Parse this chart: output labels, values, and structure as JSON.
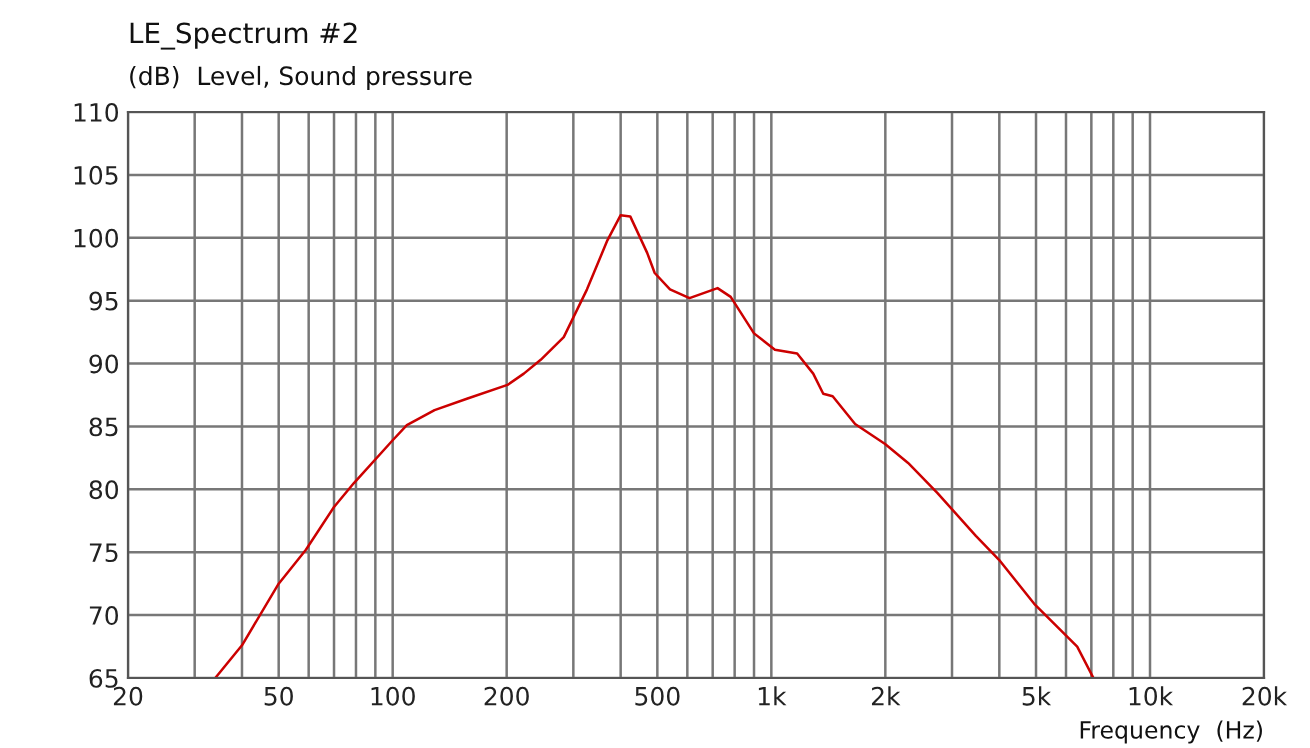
{
  "chart_data": {
    "type": "line",
    "title": "LE_Spectrum #2",
    "ylabel": "(dB)  Level, Sound pressure",
    "xlabel": "Frequency  (Hz)",
    "log": "x",
    "x": [
      34,
      40,
      50,
      59,
      70,
      79,
      100,
      109,
      129,
      157,
      201,
      222,
      246,
      283,
      326,
      369,
      400,
      424,
      470,
      492,
      540,
      608,
      721,
      781,
      900,
      1022,
      1170,
      1290,
      1371,
      1452,
      1664,
      1997,
      2297,
      2747,
      3468,
      3993,
      4945,
      6423,
      7089
    ],
    "series": [
      {
        "color": "#cc0000",
        "values": [
          65,
          67.6,
          72.5,
          75.2,
          78.6,
          80.5,
          83.9,
          85.1,
          86.3,
          87.2,
          88.3,
          89.2,
          90.3,
          92.1,
          95.9,
          99.8,
          101.8,
          101.7,
          98.8,
          97.2,
          95.9,
          95.2,
          96.0,
          95.3,
          92.4,
          91.1,
          90.8,
          89.2,
          87.6,
          87.4,
          85.2,
          83.6,
          82.1,
          79.7,
          76.3,
          74.4,
          70.9,
          67.5,
          65
        ]
      }
    ],
    "xlim": [
      20,
      20000
    ],
    "ylim": [
      65,
      110
    ],
    "yticks": [
      65,
      70,
      75,
      80,
      85,
      90,
      95,
      100,
      105,
      110
    ],
    "xticks": [
      20,
      {
        "value": 30,
        "label": null
      },
      {
        "value": 40,
        "label": null
      },
      50,
      {
        "value": 60,
        "label": null
      },
      {
        "value": 70,
        "label": null
      },
      {
        "value": 80,
        "label": null
      },
      {
        "value": 90,
        "label": null
      },
      100,
      200,
      {
        "value": 300,
        "label": null
      },
      {
        "value": 400,
        "label": null
      },
      500,
      {
        "value": 600,
        "label": null
      },
      {
        "value": 700,
        "label": null
      },
      {
        "value": 800,
        "label": null
      },
      {
        "value": 900,
        "label": null
      },
      {
        "value": 1000,
        "label": "1k"
      },
      {
        "value": 2000,
        "label": "2k"
      },
      {
        "value": 3000,
        "label": null
      },
      {
        "value": 4000,
        "label": null
      },
      {
        "value": 5000,
        "label": "5k"
      },
      {
        "value": 6000,
        "label": null
      },
      {
        "value": 7000,
        "label": null
      },
      {
        "value": 8000,
        "label": null
      },
      {
        "value": 9000,
        "label": null
      },
      {
        "value": 10000,
        "label": "10k"
      },
      {
        "value": 20000,
        "label": "20k"
      }
    ],
    "grid": true,
    "legend": false,
    "marker": "none",
    "line_style": "solid"
  }
}
